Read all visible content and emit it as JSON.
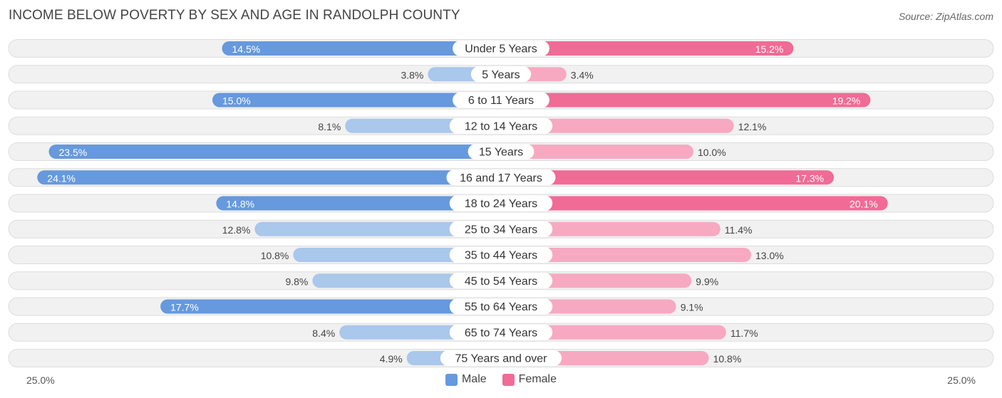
{
  "title": "INCOME BELOW POVERTY BY SEX AND AGE IN RANDOLPH COUNTY",
  "source": "Source: ZipAtlas.com",
  "axis": {
    "left_label": "25.0%",
    "right_label": "25.0%"
  },
  "legend": {
    "male_label": "Male",
    "female_label": "Female"
  },
  "colors": {
    "male_strong": "#6699dd",
    "male_light": "#aac7ec",
    "female_strong": "#f06b96",
    "female_light": "#f7a9c2",
    "row_bg": "#f1f1f1",
    "row_border": "#dddddd"
  },
  "chart_data": {
    "type": "bar",
    "orientation": "horizontal-diverging",
    "title": "INCOME BELOW POVERTY BY SEX AND AGE IN RANDOLPH COUNTY",
    "xlim": [
      -25,
      25
    ],
    "categories": [
      "Under 5 Years",
      "5 Years",
      "6 to 11 Years",
      "12 to 14 Years",
      "15 Years",
      "16 and 17 Years",
      "18 to 24 Years",
      "25 to 34 Years",
      "35 to 44 Years",
      "45 to 54 Years",
      "55 to 64 Years",
      "65 to 74 Years",
      "75 Years and over"
    ],
    "series": [
      {
        "name": "Male",
        "values": [
          14.5,
          3.8,
          15.0,
          8.1,
          23.5,
          24.1,
          14.8,
          12.8,
          10.8,
          9.8,
          17.7,
          8.4,
          4.9
        ],
        "labels": [
          "14.5%",
          "3.8%",
          "15.0%",
          "8.1%",
          "23.5%",
          "24.1%",
          "14.8%",
          "12.8%",
          "10.8%",
          "9.8%",
          "17.7%",
          "8.4%",
          "4.9%"
        ]
      },
      {
        "name": "Female",
        "values": [
          15.2,
          3.4,
          19.2,
          12.1,
          10.0,
          17.3,
          20.1,
          11.4,
          13.0,
          9.9,
          9.1,
          11.7,
          10.8
        ],
        "labels": [
          "15.2%",
          "3.4%",
          "19.2%",
          "12.1%",
          "10.0%",
          "17.3%",
          "20.1%",
          "11.4%",
          "13.0%",
          "9.9%",
          "9.1%",
          "11.7%",
          "10.8%"
        ]
      }
    ]
  }
}
